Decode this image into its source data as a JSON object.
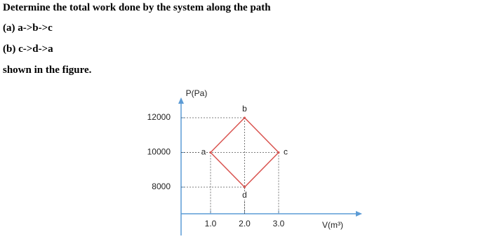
{
  "question": {
    "lines": [
      "Determine the total work done by the system along the path",
      "(a) a->b->c",
      "(b) c->d->a",
      "shown in the figure."
    ]
  },
  "figure": {
    "y_label": "P(Pa)",
    "x_label": "V(m³)",
    "yticks": [
      8000,
      10000,
      12000
    ],
    "xticks": [
      {
        "value": 1,
        "label": "1.0"
      },
      {
        "value": 2,
        "label": "2.0"
      },
      {
        "value": 3,
        "label": "3.0"
      }
    ],
    "points": [
      {
        "label": "a",
        "x": 1,
        "y": 10000
      },
      {
        "label": "b",
        "x": 2,
        "y": 12000
      },
      {
        "label": "c",
        "x": 3,
        "y": 10000
      },
      {
        "label": "d",
        "x": 2,
        "y": 8000
      }
    ]
  }
}
